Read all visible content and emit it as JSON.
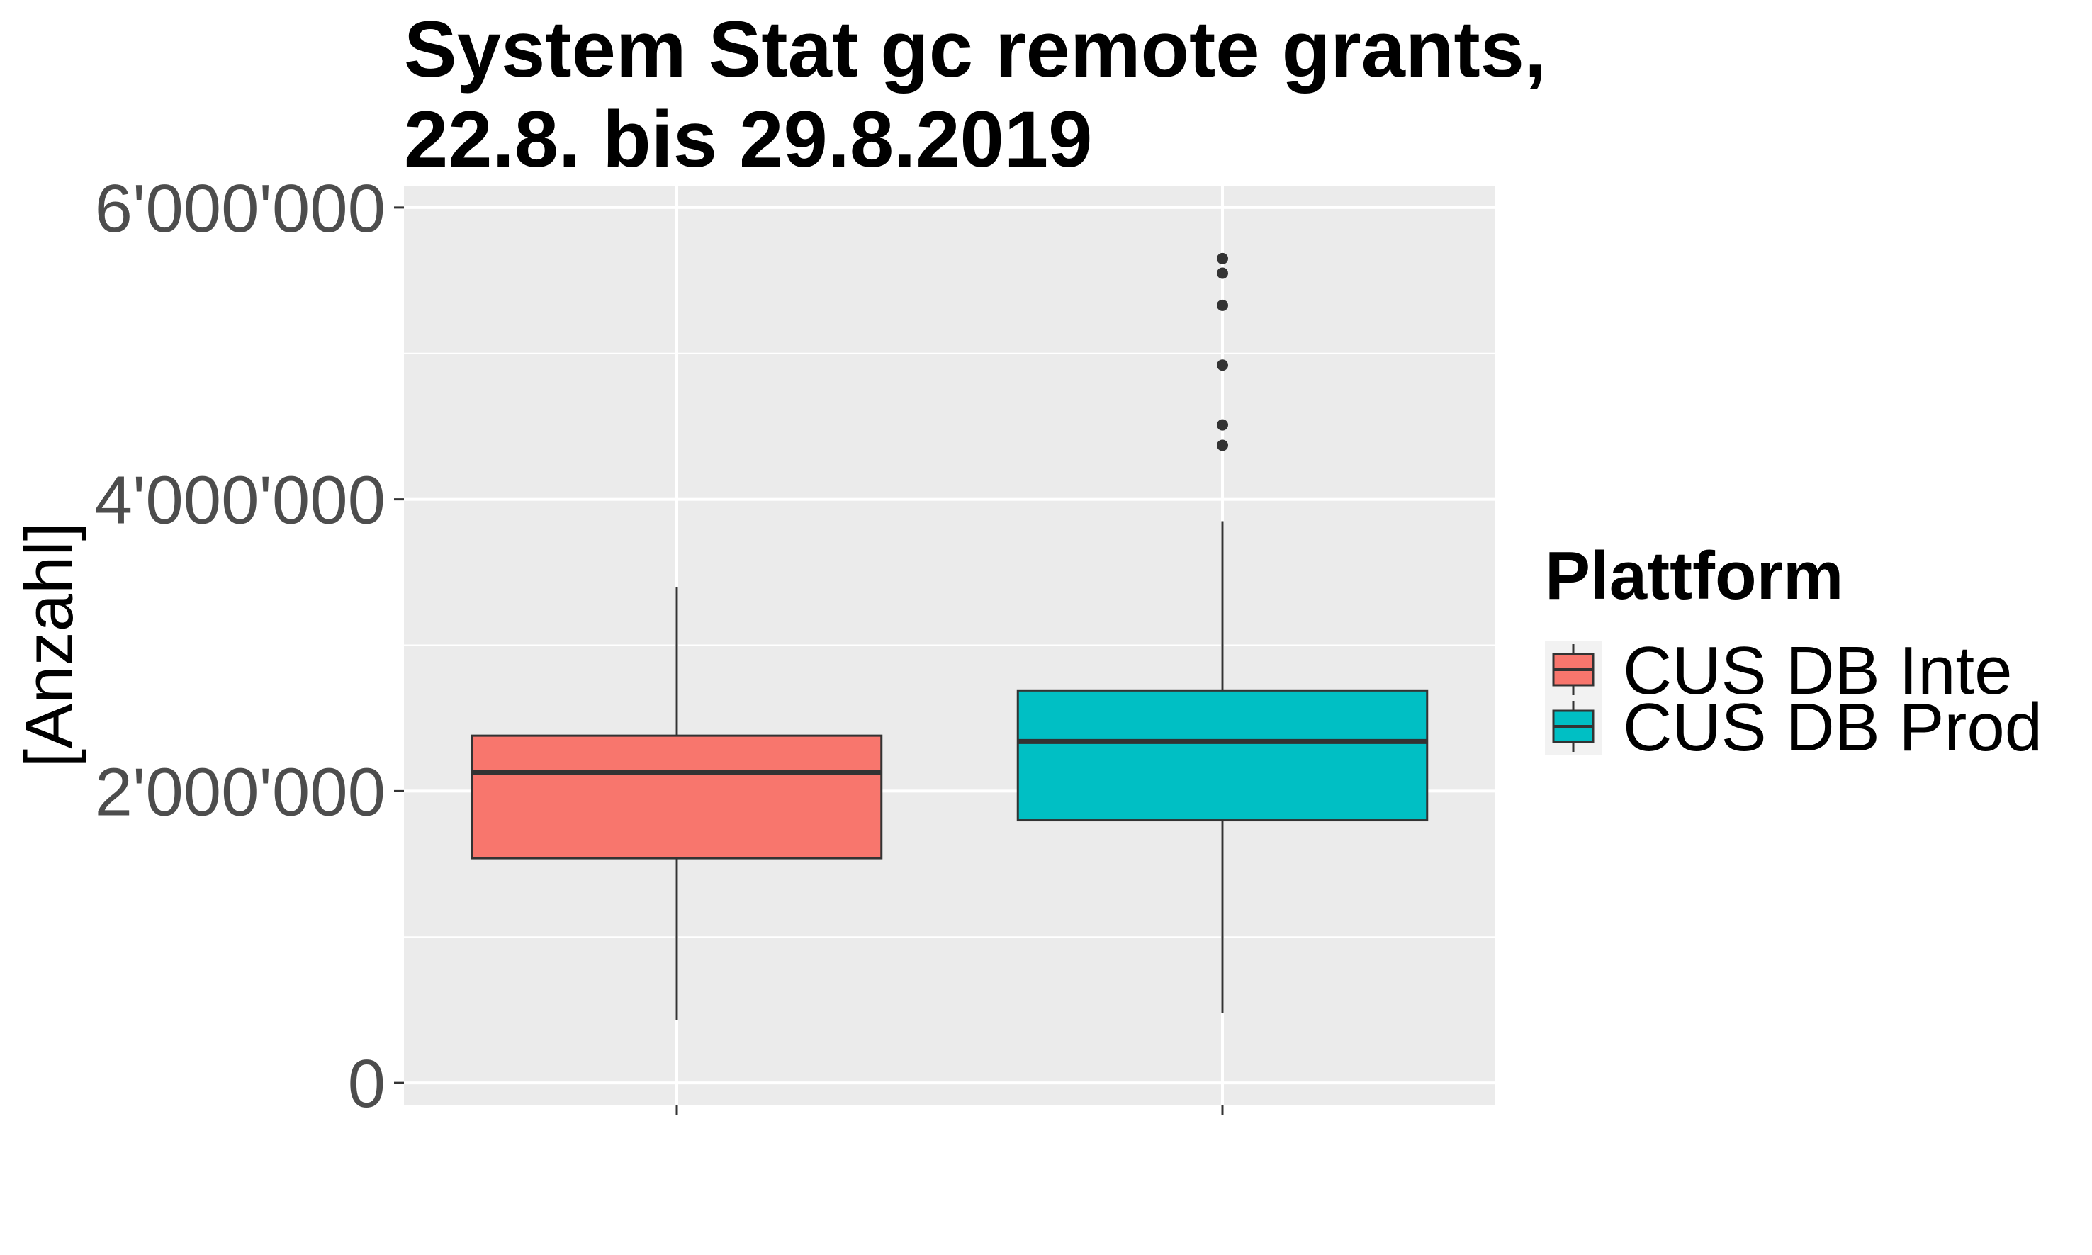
{
  "chart_data": {
    "type": "box",
    "title_lines": [
      "System Stat gc remote grants,",
      "22.8. bis 29.8.2019"
    ],
    "xlabel": "",
    "ylabel": "[Anzahl]",
    "ylim": [
      -150000,
      6150000
    ],
    "yticks": [
      0,
      2000000,
      4000000,
      6000000
    ],
    "ytick_labels": [
      "0",
      "2'000'000",
      "4'000'000",
      "6'000'000"
    ],
    "minor_yticks": [
      1000000,
      3000000,
      5000000
    ],
    "grid": true,
    "legend": {
      "title": "Plattform",
      "placement": "right"
    },
    "series": [
      {
        "name": "CUS DB Inte",
        "color": "#F8766D",
        "whisker_low": 430000,
        "q1": 1540000,
        "median": 2130000,
        "q3": 2380000,
        "whisker_high": 3400000,
        "outliers": []
      },
      {
        "name": "CUS DB Prod",
        "color": "#00BFC4",
        "whisker_low": 480000,
        "q1": 1800000,
        "median": 2340000,
        "q3": 2690000,
        "whisker_high": 3850000,
        "outliers": [
          4370000,
          4510000,
          4920000,
          5330000,
          5550000,
          5650000
        ]
      }
    ]
  }
}
